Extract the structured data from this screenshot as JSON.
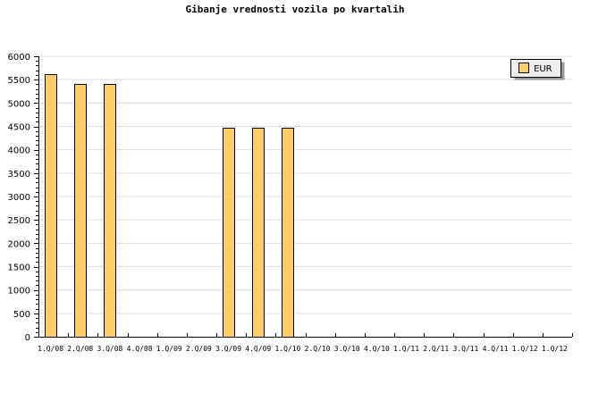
{
  "chart_data": {
    "type": "bar",
    "title": "Gibanje vrednosti vozila po kvartalih",
    "xlabel": "",
    "ylabel": "",
    "ylim": [
      0,
      6000
    ],
    "yticks": [
      0,
      500,
      1000,
      1500,
      2000,
      2500,
      3000,
      3500,
      4000,
      4500,
      5000,
      5500,
      6000
    ],
    "grid": true,
    "legend_position": "top-right",
    "categories": [
      "1.Q/08",
      "2.Q/08",
      "3.Q/08",
      "4.Q/08",
      "1.Q/09",
      "2.Q/09",
      "3.Q/09",
      "4.Q/09",
      "1.Q/10",
      "2.Q/10",
      "3.Q/10",
      "4.Q/10",
      "1.Q/11",
      "2.Q/11",
      "3.Q/11",
      "4.Q/11",
      "1.Q/12",
      "1.Q/12"
    ],
    "series": [
      {
        "name": "EUR",
        "color": "#FFCC66",
        "values": [
          5620,
          5400,
          5400,
          0,
          0,
          0,
          4480,
          4480,
          4480,
          0,
          0,
          0,
          0,
          0,
          0,
          0,
          0,
          0
        ]
      }
    ]
  }
}
